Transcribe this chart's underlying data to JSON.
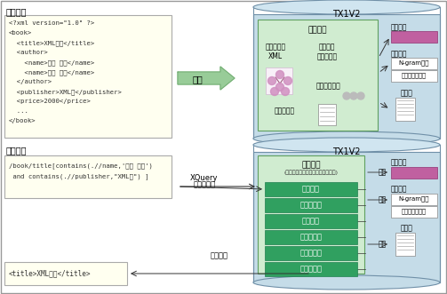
{
  "fig_width": 5.03,
  "fig_height": 3.31,
  "dpi": 100,
  "bg_color": "#ffffff",
  "title_top": "登録処理",
  "title_bottom": "検索処理",
  "xml_code_top": [
    "<?xml version=\"1.0\" ?>",
    "<book>",
    "  <title>XML入門</title>",
    "  <author>",
    "    <name>絵崎 太郎</name>",
    "    <name>絵崎 次郎</name>",
    "  </author>",
    "  <publisher>XML社</publisher>",
    "  <price>2000</price>",
    "  ...",
    "</book>"
  ],
  "xml_code_bottom_1": "/book/title[contains(.//name,'絵崎 太郎')",
  "xml_code_bottom_2": " and contains(.//publisher,\"XML社\") ]",
  "xml_result": "<title>XML入門</title>",
  "db_label": "TX1V2",
  "arrow_register": "登録",
  "arrow_xquery_1": "XQuery",
  "arrow_xquery_2": "による検索",
  "arrow_result": "結果取得",
  "top_inner_title": "登録処理",
  "top_inner_xml": "解析された\nXML",
  "top_inner_schema": "スキーマ\nアナライザ",
  "top_inner_vocab": "語彙情報抽出",
  "top_inner_data": "データ登録",
  "bottom_inner_title": "検索処理",
  "bottom_inner_subtitle": "(クエリオプティマイザによる処理)",
  "bottom_process_steps": [
    "構文解析",
    "コスト解析",
    "構文解析",
    "プラン生成",
    "プラン改善",
    "プラン実行"
  ],
  "ref_label": "参照",
  "label_kozo": "構造索引",
  "label_vocab": "語彙索引",
  "label_ngram": "N-gram方式",
  "label_morph": "形態素解析方式",
  "label_data": "データ",
  "color_xml_bg": "#fffff0",
  "color_db_body": "#c5dce8",
  "color_db_top": "#d0e5f0",
  "color_db_edge": "#7090a8",
  "color_inner_box": "#d0ecd0",
  "color_inner_edge": "#60a060",
  "color_green_btn": "#30a060",
  "color_green_btn_edge": "#208050",
  "color_pink_rect": "#c060a0",
  "color_pink_edge": "#903070",
  "color_white_box": "#ffffff",
  "color_box_edge": "#888888",
  "color_arrow_fill": "#98cc98",
  "color_arrow_edge": "#70aa70",
  "color_text_dark": "#222222",
  "color_gray_dot": "#bbbbbb",
  "color_pink_mol": "#d090c0"
}
